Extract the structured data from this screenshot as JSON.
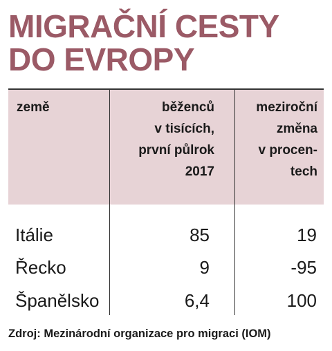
{
  "title": {
    "line1": "MIGRAČNÍ CESTY",
    "line2": "DO EVROPY"
  },
  "table": {
    "headers": {
      "country": "země",
      "count": [
        "běženců",
        "v tisících,",
        "první půlrok",
        "2017"
      ],
      "change": [
        "meziroční",
        "změna",
        "v procen-",
        "tech"
      ]
    },
    "rows": [
      {
        "country": "Itálie",
        "count": "85",
        "change": "19"
      },
      {
        "country": "Řecko",
        "count": "9",
        "change": "-95"
      },
      {
        "country": "Španělsko",
        "count": "6,4",
        "change": "100"
      }
    ]
  },
  "source": "Zdroj: Mezinárodní organizace pro migraci (IOM)",
  "colors": {
    "title": "#9b5a66",
    "header_background": "#e7d3d6",
    "text": "#1a1a1a"
  }
}
